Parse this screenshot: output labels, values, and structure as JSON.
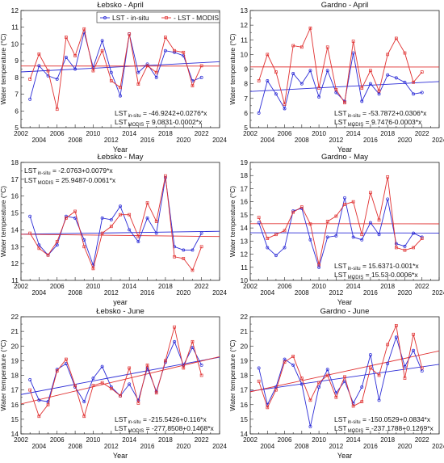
{
  "colors": {
    "in_situ": "#2b2bd6",
    "modis": "#e03030",
    "axis": "#222222"
  },
  "legend": {
    "in_situ": "LST - in-situ",
    "modis": "- LST - MODIS"
  },
  "chart_data": [
    {
      "type": "line",
      "title": "Łebsko - April",
      "xlabel": "Year",
      "ylabel": "Water temperature (°C)",
      "xlim": [
        2002,
        2024
      ],
      "ylim": [
        5,
        12
      ],
      "xticks": [
        2002,
        2004,
        2006,
        2008,
        2010,
        2012,
        2014,
        2016,
        2018,
        2020,
        2022,
        2024
      ],
      "yticks": [
        5,
        6,
        7,
        8,
        9,
        10,
        11,
        12
      ],
      "legend": "top-center",
      "series": [
        {
          "name": "LST - in-situ",
          "color": "#2b2bd6",
          "x": [
            2003,
            2004,
            2005,
            2006,
            2007,
            2008,
            2009,
            2010,
            2011,
            2012,
            2013,
            2014,
            2015,
            2016,
            2017,
            2018,
            2019,
            2020,
            2021,
            2022
          ],
          "values": [
            6.7,
            8.7,
            8.1,
            7.9,
            9.2,
            8.5,
            10.7,
            8.6,
            10.2,
            8.3,
            6.9,
            10.6,
            8.3,
            8.8,
            8.0,
            9.6,
            9.5,
            9.3,
            7.8,
            8.0
          ]
        },
        {
          "name": "- LST - MODIS",
          "color": "#e03030",
          "x": [
            2003,
            2004,
            2005,
            2006,
            2007,
            2008,
            2009,
            2010,
            2011,
            2012,
            2013,
            2014,
            2015,
            2016,
            2017,
            2018,
            2019,
            2020,
            2021,
            2022
          ],
          "values": [
            7.9,
            9.4,
            8.4,
            6.1,
            10.4,
            9.3,
            10.9,
            8.4,
            9.6,
            7.8,
            7.4,
            10.6,
            7.6,
            8.7,
            8.3,
            10.4,
            9.6,
            9.5,
            7.5,
            8.7
          ]
        }
      ],
      "trends": [
        {
          "a": -46.9242,
          "b": 0.0276,
          "color": "#2b2bd6"
        },
        {
          "a": 9.0831,
          "b": -0.0002,
          "color": "#e03030"
        }
      ],
      "equations": {
        "in_situ": {
          "pre": "LST",
          "sub": "in-situ",
          "post": " = -46.9242+0.0276*x"
        },
        "modis": {
          "pre": "LST",
          "sub": "MODIS",
          "post": " = 9.0831-0.0002*x"
        }
      },
      "eq_pos": "bottom-right"
    },
    {
      "type": "line",
      "title": "Gardno - April",
      "xlabel": "Year",
      "ylabel": "Water temperature (°C)",
      "xlim": [
        2002,
        2024
      ],
      "ylim": [
        5,
        13
      ],
      "xticks": [
        2002,
        2004,
        2006,
        2008,
        2010,
        2012,
        2014,
        2016,
        2018,
        2020,
        2022,
        2024
      ],
      "yticks": [
        5,
        6,
        7,
        8,
        9,
        10,
        11,
        12,
        13
      ],
      "series": [
        {
          "name": "LST - in-situ",
          "color": "#2b2bd6",
          "x": [
            2003,
            2004,
            2005,
            2006,
            2007,
            2008,
            2009,
            2010,
            2011,
            2012,
            2013,
            2014,
            2015,
            2016,
            2017,
            2018,
            2019,
            2020,
            2021,
            2022
          ],
          "values": [
            6.0,
            8.2,
            7.3,
            6.3,
            8.7,
            8.0,
            8.9,
            7.1,
            8.9,
            7.4,
            6.8,
            10.1,
            6.8,
            8.0,
            7.3,
            8.6,
            8.4,
            8.1,
            7.3,
            7.4
          ]
        },
        {
          "name": "- LST - MODIS",
          "color": "#e03030",
          "x": [
            2003,
            2004,
            2005,
            2006,
            2007,
            2008,
            2009,
            2010,
            2011,
            2012,
            2013,
            2014,
            2015,
            2016,
            2017,
            2018,
            2019,
            2020,
            2021,
            2022
          ],
          "values": [
            8.2,
            10.0,
            8.8,
            6.6,
            10.6,
            10.5,
            11.8,
            7.7,
            10.5,
            7.6,
            6.7,
            10.9,
            7.7,
            8.9,
            7.5,
            10.0,
            11.1,
            10.1,
            8.1,
            8.8
          ]
        }
      ],
      "trends": [
        {
          "a": -53.7872,
          "b": 0.0306,
          "color": "#2b2bd6"
        },
        {
          "a": 9.7476,
          "b": -0.0003,
          "color": "#e03030"
        }
      ],
      "equations": {
        "in_situ": {
          "pre": "LST",
          "sub": "in-situ",
          "post": " = -53.7872+0.0306*x"
        },
        "modis": {
          "pre": "LST",
          "sub": "MODIS",
          "post": " = 9.7476-0.0003*x"
        }
      },
      "eq_pos": "bottom-right"
    },
    {
      "type": "line",
      "title": "Łebsko - May",
      "xlabel": "year",
      "ylabel": "Water temperature (°C)",
      "xlim": [
        2002,
        2024
      ],
      "ylim": [
        11,
        18
      ],
      "xticks": [
        2002,
        2004,
        2006,
        2008,
        2010,
        2012,
        2014,
        2016,
        2018,
        2020,
        2022,
        2024
      ],
      "yticks": [
        11,
        12,
        13,
        14,
        15,
        16,
        17,
        18
      ],
      "series": [
        {
          "name": "LST - in-situ",
          "color": "#2b2bd6",
          "x": [
            2003,
            2004,
            2005,
            2006,
            2007,
            2008,
            2009,
            2010,
            2011,
            2012,
            2013,
            2014,
            2015,
            2016,
            2017,
            2018,
            2019,
            2020,
            2021,
            2022
          ],
          "values": [
            14.8,
            13.1,
            12.5,
            13.1,
            14.8,
            14.7,
            13.4,
            11.9,
            14.7,
            14.6,
            15.4,
            14.0,
            13.3,
            14.7,
            13.8,
            17.1,
            13.0,
            12.8,
            12.8,
            13.8
          ]
        },
        {
          "name": "- LST - MODIS",
          "color": "#e03030",
          "x": [
            2003,
            2004,
            2005,
            2006,
            2007,
            2008,
            2009,
            2010,
            2011,
            2012,
            2013,
            2014,
            2015,
            2016,
            2017,
            2018,
            2019,
            2020,
            2021,
            2022
          ],
          "values": [
            13.8,
            12.9,
            12.5,
            13.3,
            14.7,
            15.1,
            13.0,
            11.7,
            13.8,
            14.2,
            14.9,
            14.9,
            13.6,
            15.6,
            14.5,
            17.2,
            12.4,
            12.3,
            11.6,
            13.0
          ]
        }
      ],
      "trends": [
        {
          "a": -2.0763,
          "b": 0.0079,
          "color": "#2b2bd6"
        },
        {
          "a": 25.9487,
          "b": -0.0061,
          "color": "#e03030"
        }
      ],
      "equations": {
        "in_situ": {
          "pre": "LST",
          "sub": "in-situ",
          "post": " = -2.0763+0.0079*x"
        },
        "modis": {
          "pre": "LST",
          "sub": "MODIS",
          "post": " = 25.9487-0.0061*x"
        }
      },
      "eq_pos": "top-left"
    },
    {
      "type": "line",
      "title": "Gardno - May",
      "xlabel": "Year",
      "ylabel": "Water temperature (°C)",
      "xlim": [
        2002,
        2024
      ],
      "ylim": [
        10,
        19
      ],
      "xticks": [
        2002,
        2004,
        2006,
        2008,
        2010,
        2012,
        2014,
        2016,
        2018,
        2020,
        2022,
        2024
      ],
      "yticks": [
        10,
        11,
        12,
        13,
        14,
        15,
        16,
        17,
        18,
        19
      ],
      "series": [
        {
          "name": "LST - in-situ",
          "color": "#2b2bd6",
          "x": [
            2003,
            2004,
            2005,
            2006,
            2007,
            2008,
            2009,
            2010,
            2011,
            2012,
            2013,
            2014,
            2015,
            2016,
            2017,
            2018,
            2019,
            2020,
            2021,
            2022
          ],
          "values": [
            14.4,
            12.5,
            11.9,
            12.5,
            15.3,
            15.5,
            13.1,
            11.0,
            13.3,
            13.4,
            16.3,
            13.3,
            13.1,
            14.4,
            13.5,
            16.2,
            12.8,
            12.6,
            13.6,
            13.3
          ]
        },
        {
          "name": "- LST - MODIS",
          "color": "#e03030",
          "x": [
            2003,
            2004,
            2005,
            2006,
            2007,
            2008,
            2009,
            2010,
            2011,
            2012,
            2013,
            2014,
            2015,
            2016,
            2017,
            2018,
            2019,
            2020,
            2021,
            2022
          ],
          "values": [
            14.8,
            13.2,
            13.5,
            13.8,
            15.2,
            15.6,
            14.3,
            11.2,
            14.5,
            14.9,
            15.8,
            16.0,
            13.5,
            16.7,
            14.6,
            17.9,
            12.5,
            12.3,
            12.5,
            13.2
          ]
        }
      ],
      "trends": [
        {
          "a": 15.6371,
          "b": -0.001,
          "color": "#2b2bd6"
        },
        {
          "a": 15.53,
          "b": -0.0006,
          "color": "#e03030"
        }
      ],
      "equations": {
        "in_situ": {
          "pre": "LST",
          "sub": "in-situ",
          "post": " = 15.6371-0.001*x"
        },
        "modis": {
          "pre": "LST",
          "sub": "MODIS",
          "post": " = 15.53-0.0006*x"
        }
      },
      "eq_pos": "bottom-right"
    },
    {
      "type": "line",
      "title": "Łebsko - June",
      "xlabel": "Year",
      "ylabel": "Water temperature (°C)",
      "xlim": [
        2002,
        2024
      ],
      "ylim": [
        14,
        22
      ],
      "xticks": [
        2002,
        2004,
        2006,
        2008,
        2010,
        2012,
        2014,
        2016,
        2018,
        2020,
        2022,
        2024
      ],
      "yticks": [
        14,
        15,
        16,
        17,
        18,
        19,
        20,
        21,
        22
      ],
      "series": [
        {
          "name": "LST - in-situ",
          "color": "#2b2bd6",
          "x": [
            2003,
            2004,
            2005,
            2006,
            2007,
            2008,
            2009,
            2010,
            2011,
            2012,
            2013,
            2014,
            2015,
            2016,
            2017,
            2018,
            2019,
            2020,
            2021,
            2022
          ],
          "values": [
            17.7,
            16.3,
            16.2,
            18.4,
            18.8,
            17.2,
            16.2,
            17.8,
            18.6,
            17.2,
            16.6,
            17.4,
            16.3,
            18.5,
            16.9,
            18.9,
            20.3,
            18.7,
            19.9,
            18.7
          ]
        },
        {
          "name": "- LST - MODIS",
          "color": "#e03030",
          "x": [
            2003,
            2004,
            2005,
            2006,
            2007,
            2008,
            2009,
            2010,
            2011,
            2012,
            2013,
            2014,
            2015,
            2016,
            2017,
            2018,
            2019,
            2020,
            2021,
            2022
          ],
          "values": [
            17.0,
            15.2,
            16.0,
            18.3,
            19.1,
            17.3,
            15.2,
            17.3,
            17.5,
            17.1,
            16.6,
            18.5,
            16.1,
            18.7,
            16.8,
            19.0,
            21.3,
            18.5,
            20.3,
            18.0
          ]
        }
      ],
      "trends": [
        {
          "a": -215.5426,
          "b": 0.116,
          "color": "#2b2bd6"
        },
        {
          "a": -277.8508,
          "b": 0.1468,
          "color": "#e03030"
        }
      ],
      "equations": {
        "in_situ": {
          "pre": "LST",
          "sub": "in-situ",
          "post": " = -215.5426+0.116*x"
        },
        "modis": {
          "pre": "LST",
          "sub": "MODIS",
          "post": " = -277.8508+0.1468*x"
        }
      },
      "eq_pos": "bottom-right"
    },
    {
      "type": "line",
      "title": "Gardno - June",
      "xlabel": "Year",
      "ylabel": "Water temperature (°C)",
      "xlim": [
        2002,
        2024
      ],
      "ylim": [
        14,
        22
      ],
      "xticks": [
        2002,
        2004,
        2006,
        2008,
        2010,
        2012,
        2014,
        2016,
        2018,
        2020,
        2022,
        2024
      ],
      "yticks": [
        14,
        15,
        16,
        17,
        18,
        19,
        20,
        21,
        22
      ],
      "series": [
        {
          "name": "LST - in-situ",
          "color": "#2b2bd6",
          "x": [
            2003,
            2004,
            2005,
            2006,
            2007,
            2008,
            2009,
            2010,
            2011,
            2012,
            2013,
            2014,
            2015,
            2016,
            2017,
            2018,
            2019,
            2020,
            2021,
            2022
          ],
          "values": [
            18.5,
            16.0,
            17.2,
            19.1,
            18.7,
            17.4,
            14.5,
            17.2,
            18.4,
            16.8,
            17.6,
            16.1,
            17.2,
            19.4,
            16.3,
            18.8,
            20.6,
            18.6,
            19.7,
            18.3
          ]
        },
        {
          "name": "- LST - MODIS",
          "color": "#e03030",
          "x": [
            2003,
            2004,
            2005,
            2006,
            2007,
            2008,
            2009,
            2010,
            2011,
            2012,
            2013,
            2014,
            2015,
            2016,
            2017,
            2018,
            2019,
            2020,
            2021,
            2022
          ],
          "values": [
            17.6,
            15.8,
            17.0,
            18.9,
            19.3,
            17.8,
            16.3,
            17.5,
            18.0,
            16.5,
            17.9,
            15.9,
            16.2,
            18.5,
            18.0,
            20.1,
            21.4,
            17.8,
            20.8,
            18.5
          ]
        }
      ],
      "trends": [
        {
          "a": -150.0529,
          "b": 0.0834,
          "color": "#2b2bd6"
        },
        {
          "a": -237.1788,
          "b": 0.1269,
          "color": "#e03030"
        }
      ],
      "equations": {
        "in_situ": {
          "pre": "LST",
          "sub": "in-situ",
          "post": " = -150.0529+0.0834*x"
        },
        "modis": {
          "pre": "LST",
          "sub": "MODIS",
          "post": " = -237.1788+0.1269*x"
        }
      },
      "eq_pos": "bottom-right"
    }
  ]
}
